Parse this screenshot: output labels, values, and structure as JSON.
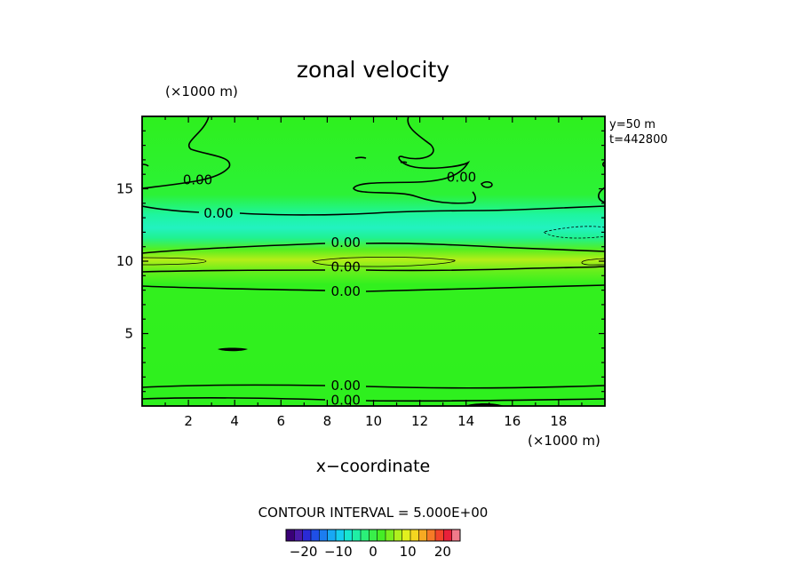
{
  "chart_data": {
    "type": "contour",
    "title": "zonal velocity",
    "xlabel": "x−coordinate",
    "x_unit": "(×1000 m)",
    "y_unit": "(×1000 m)",
    "info": [
      "y=50  m",
      "t=442800"
    ],
    "xlim": [
      0,
      20
    ],
    "ylim": [
      0,
      20
    ],
    "x_ticks": [
      2,
      4,
      6,
      8,
      10,
      12,
      14,
      16,
      18
    ],
    "y_ticks": [
      5,
      10,
      15
    ],
    "contour_interval_text": "CONTOUR INTERVAL = 5.000E+00",
    "contour_interval": 5,
    "contour_labels": [
      {
        "text": "0.00",
        "x": 2.4,
        "y": 15.6
      },
      {
        "text": "0.00",
        "x": 3.3,
        "y": 13.3
      },
      {
        "text": "0.00",
        "x": 13.8,
        "y": 15.8
      },
      {
        "text": "0.00",
        "x": 8.8,
        "y": 11.3
      },
      {
        "text": "0.00",
        "x": 8.8,
        "y": 9.6
      },
      {
        "text": "0.00",
        "x": 8.8,
        "y": 7.9
      },
      {
        "text": "0.00",
        "x": 8.8,
        "y": 1.4
      },
      {
        "text": "0.00",
        "x": 8.8,
        "y": 0.4
      }
    ],
    "colorbar": {
      "ticks": [
        "−20",
        "−10",
        "0",
        "10",
        "20"
      ],
      "tick_values": [
        -20,
        -10,
        0,
        10,
        20
      ],
      "range": [
        -25,
        25
      ],
      "colors": [
        "#3a0077",
        "#4b1aa8",
        "#2a2ad6",
        "#1f4fe6",
        "#1c7df0",
        "#18a8f4",
        "#16cdef",
        "#17e6cf",
        "#1fefa5",
        "#2bf079",
        "#39ef4a",
        "#45ee25",
        "#7aef1f",
        "#b0f01e",
        "#e2f01e",
        "#f5d620",
        "#f7aa22",
        "#f67a26",
        "#f2452a",
        "#e8203a",
        "#f07a8a"
      ]
    },
    "field_colors": {
      "background": "#2ef01e",
      "jet_band": "#1ef5a0",
      "jet_core": "#22f2c0",
      "positive_band": "#b4ee18"
    }
  }
}
